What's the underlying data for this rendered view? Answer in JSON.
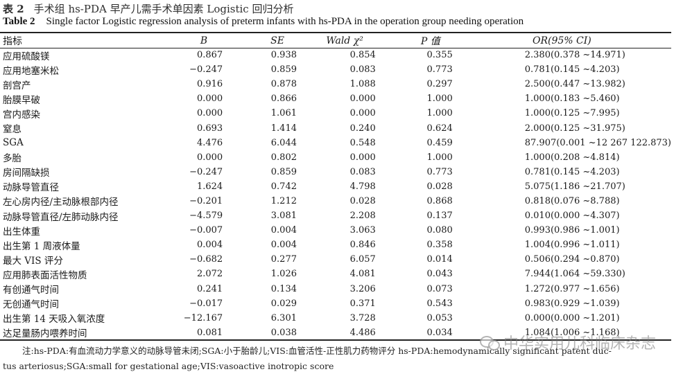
{
  "title": {
    "cn_label": "表 2",
    "cn_text": "手术组 hs-PDA 早产儿需手术单因素 Logistic 回归分析",
    "en_label": "Table 2",
    "en_text": "Single factor Logistic regression analysis of preterm infants with hs-PDA in the operation group needing operation"
  },
  "columns": [
    "指标",
    "B",
    "SE",
    "Wald χ²",
    "P 值",
    "OR(95% CI)"
  ],
  "rows": [
    {
      "name": "应用硫酸镁",
      "b": "0.867",
      "se": "0.938",
      "wald": "0.854",
      "p": "0.355",
      "or": "2.380(0.378 ~14.971)"
    },
    {
      "name": "应用地塞米松",
      "b": "−0.247",
      "se": "0.859",
      "wald": "0.083",
      "p": "0.773",
      "or": "0.781(0.145 ~4.203)"
    },
    {
      "name": "剖宫产",
      "b": "0.916",
      "se": "0.878",
      "wald": "1.088",
      "p": "0.297",
      "or": "2.500(0.447 ~13.982)"
    },
    {
      "name": "胎膜早破",
      "b": "0.000",
      "se": "0.866",
      "wald": "0.000",
      "p": "1.000",
      "or": "1.000(0.183 ~5.460)"
    },
    {
      "name": "宫内感染",
      "b": "0.000",
      "se": "1.061",
      "wald": "0.000",
      "p": "1.000",
      "or": "1.000(0.125 ~7.995)"
    },
    {
      "name": "窒息",
      "b": "0.693",
      "se": "1.414",
      "wald": "0.240",
      "p": "0.624",
      "or": "2.000(0.125 ~31.975)"
    },
    {
      "name": "SGA",
      "b": "4.476",
      "se": "6.044",
      "wald": "0.548",
      "p": "0.459",
      "or": "87.907(0.001 ~12 267 122.873)"
    },
    {
      "name": "多胎",
      "b": "0.000",
      "se": "0.802",
      "wald": "0.000",
      "p": "1.000",
      "or": "1.000(0.208 ~4.814)"
    },
    {
      "name": "房间隔缺损",
      "b": "−0.247",
      "se": "0.859",
      "wald": "0.083",
      "p": "0.773",
      "or": "0.781(0.145 ~4.203)"
    },
    {
      "name": "动脉导管直径",
      "b": "1.624",
      "se": "0.742",
      "wald": "4.798",
      "p": "0.028",
      "or": "5.075(1.186 ~21.707)"
    },
    {
      "name": "左心房内径/主动脉根部内径",
      "b": "−0.201",
      "se": "1.212",
      "wald": "0.028",
      "p": "0.868",
      "or": "0.818(0.076 ~8.788)"
    },
    {
      "name": "动脉导管直径/左肺动脉内径",
      "b": "−4.579",
      "se": "3.081",
      "wald": "2.208",
      "p": "0.137",
      "or": "0.010(0.000 ~4.307)"
    },
    {
      "name": "出生体重",
      "b": "−0.007",
      "se": "0.004",
      "wald": "3.063",
      "p": "0.080",
      "or": "0.993(0.986 ~1.001)"
    },
    {
      "name": "出生第 1 周液体量",
      "b": "0.004",
      "se": "0.004",
      "wald": "0.846",
      "p": "0.358",
      "or": "1.004(0.996 ~1.011)"
    },
    {
      "name": "最大 VIS 评分",
      "b": "−0.682",
      "se": "0.277",
      "wald": "6.057",
      "p": "0.014",
      "or": "0.506(0.294 ~0.870)"
    },
    {
      "name": "应用肺表面活性物质",
      "b": "2.072",
      "se": "1.026",
      "wald": "4.081",
      "p": "0.043",
      "or": "7.944(1.064 ~59.330)"
    },
    {
      "name": "有创通气时间",
      "b": "0.241",
      "se": "0.134",
      "wald": "3.206",
      "p": "0.073",
      "or": "1.272(0.977 ~1.656)"
    },
    {
      "name": "无创通气时间",
      "b": "−0.017",
      "se": "0.029",
      "wald": "0.371",
      "p": "0.543",
      "or": "0.983(0.929 ~1.039)"
    },
    {
      "name": "出生第 14 天吸入氧浓度",
      "b": "−12.167",
      "se": "6.301",
      "wald": "3.728",
      "p": "0.053",
      "or": "0.000(0.000 ~1.201)"
    },
    {
      "name": "达足量肠内喂养时间",
      "b": "0.081",
      "se": "0.038",
      "wald": "4.486",
      "p": "0.034",
      "or": "1.084(1.006 ~1.168)"
    }
  ],
  "note": {
    "line1": "注:hs-PDA:有血流动力学意义的动脉导管未闭;SGA:小于胎龄儿;VIS:血管活性-正性肌力药物评分 hs-PDA:hemodynamically significant patent duc-",
    "line2": "tus arteriosus;SGA:small for gestational age;VIS:vasoactive inotropic score"
  },
  "watermark": {
    "text": "中华实用儿科临床杂志",
    "icon": "wechat-icon"
  }
}
